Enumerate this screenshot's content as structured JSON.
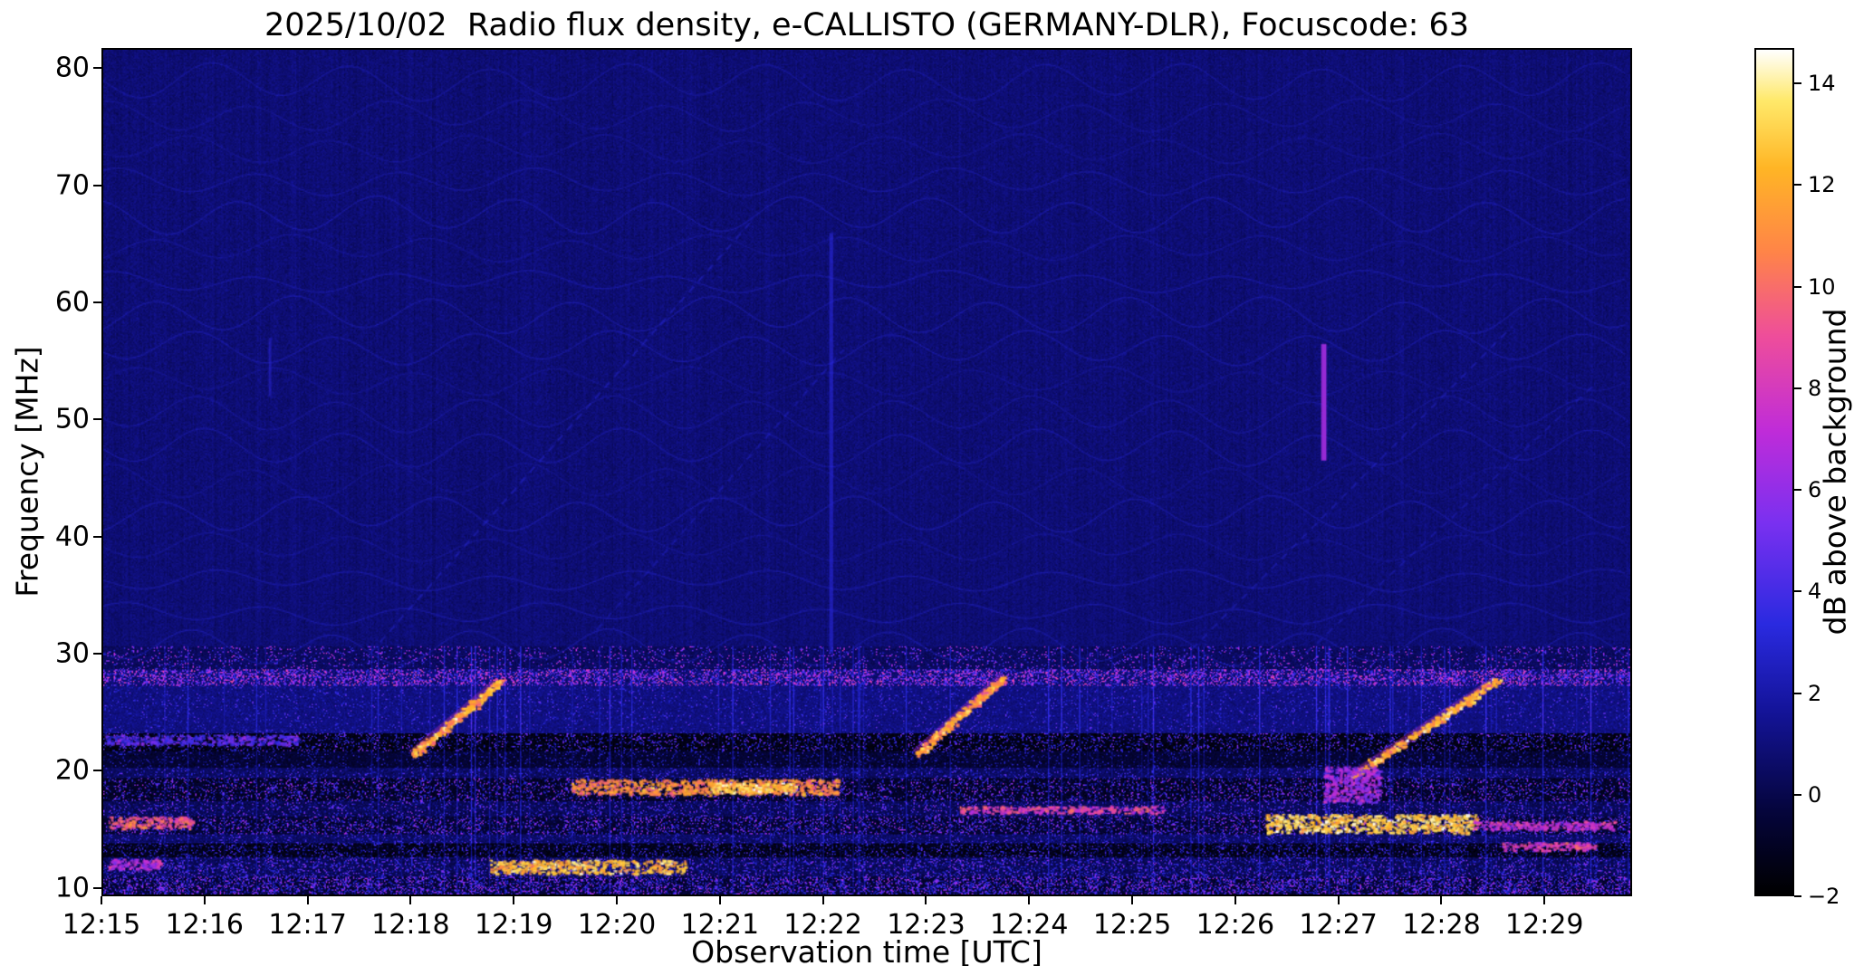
{
  "chart_data": {
    "type": "heatmap",
    "title": "2025/10/02  Radio flux density, e-CALLISTO (GERMANY-DLR), Focuscode: 63",
    "xlabel": "Observation time [UTC]",
    "ylabel": "Frequency [MHz]",
    "x_ticks": [
      "12:15",
      "12:16",
      "12:17",
      "12:18",
      "12:19",
      "12:20",
      "12:21",
      "12:22",
      "12:23",
      "12:24",
      "12:25",
      "12:26",
      "12:27",
      "12:28",
      "12:29"
    ],
    "x_range_minutes": [
      0,
      14.85
    ],
    "y_ticks": [
      10,
      20,
      30,
      40,
      50,
      60,
      70,
      80
    ],
    "y_range_mhz": [
      9.27,
      81.73
    ],
    "background_db": 0.85,
    "colorbar": {
      "label": "dB above background",
      "range": [
        -2,
        14.7
      ],
      "ticks": [
        {
          "v": -2,
          "label": "−2"
        },
        {
          "v": 0,
          "label": "0"
        },
        {
          "v": 2,
          "label": "2"
        },
        {
          "v": 4,
          "label": "4"
        },
        {
          "v": 6,
          "label": "6"
        },
        {
          "v": 8,
          "label": "8"
        },
        {
          "v": 10,
          "label": "10"
        },
        {
          "v": 12,
          "label": "12"
        },
        {
          "v": 14,
          "label": "14"
        }
      ],
      "stops": [
        {
          "t": 0.0,
          "c": "#000000"
        },
        {
          "t": 0.1,
          "c": "#05053d"
        },
        {
          "t": 0.22,
          "c": "#14149b"
        },
        {
          "t": 0.32,
          "c": "#2a2ae0"
        },
        {
          "t": 0.44,
          "c": "#7a30f0"
        },
        {
          "t": 0.55,
          "c": "#c02cd8"
        },
        {
          "t": 0.66,
          "c": "#ee4d9b"
        },
        {
          "t": 0.76,
          "c": "#ff8448"
        },
        {
          "t": 0.86,
          "c": "#ffb525"
        },
        {
          "t": 0.94,
          "c": "#ffe96a"
        },
        {
          "t": 1.0,
          "c": "#ffffff"
        }
      ]
    },
    "features": {
      "wavy_bands": {
        "f_start": 30.5,
        "f_end": 79.5,
        "spacing": 2.85,
        "amplitude": 1.0,
        "period_min": 1.35,
        "value": 3.0
      },
      "drift_lines": [
        {
          "t0": 2.6,
          "f0": 30,
          "t1": 6.3,
          "f1": 67,
          "value": 3.2
        },
        {
          "t0": 4.8,
          "f0": 32,
          "t1": 7.2,
          "f1": 56,
          "value": 2.8
        },
        {
          "t0": 10.1,
          "f0": 26,
          "t1": 13.7,
          "f1": 58,
          "value": 3.0
        },
        {
          "t0": 11.7,
          "f0": 30,
          "t1": 14.5,
          "f1": 53,
          "value": 2.7
        }
      ],
      "vertical_streaks": [
        {
          "t": 7.08,
          "f0": 30.0,
          "f1": 66.0,
          "value": 3.4,
          "width": 3,
          "alpha": 0.55
        },
        {
          "t": 11.87,
          "f0": 46.5,
          "f1": 56.5,
          "value": 6.5,
          "width": 4,
          "alpha": 0.9
        },
        {
          "t": 1.62,
          "f0": 52.0,
          "f1": 57.0,
          "value": 3.5,
          "width": 2,
          "alpha": 0.5
        }
      ],
      "bursts": [
        {
          "t0": 3.0,
          "f0": 21.3,
          "t1": 3.85,
          "f1": 27.6,
          "value": 12
        },
        {
          "t0": 7.9,
          "f0": 21.4,
          "t1": 8.75,
          "f1": 28.0,
          "value": 11.5
        },
        {
          "t0": 12.15,
          "f0": 19.5,
          "t1": 13.55,
          "f1": 27.7,
          "value": 12
        }
      ],
      "rfi_bands": [
        {
          "f0": 28.6,
          "f1": 30.6,
          "base": 0.4,
          "p": 0.1,
          "smin": 3,
          "smax": 8
        },
        {
          "f0": 27.2,
          "f1": 28.6,
          "base": 0.8,
          "p": 0.38,
          "smin": 3,
          "smax": 9
        },
        {
          "f0": 23.2,
          "f1": 27.2,
          "base": 1.1,
          "p": 0.07,
          "smin": 2,
          "smax": 5
        },
        {
          "f0": 21.6,
          "f1": 23.2,
          "base": -1.4,
          "p": 0.2,
          "smin": 1,
          "smax": 6
        },
        {
          "f0": 20.2,
          "f1": 21.6,
          "base": -0.6,
          "p": 0.13,
          "smin": 0,
          "smax": 4
        },
        {
          "f0": 19.3,
          "f1": 20.2,
          "base": 0.4,
          "p": 0.16,
          "smin": 1,
          "smax": 5
        },
        {
          "f0": 17.3,
          "f1": 19.3,
          "base": -0.9,
          "p": 0.22,
          "smin": 1,
          "smax": 7
        },
        {
          "f0": 16.0,
          "f1": 17.3,
          "base": 0.2,
          "p": 0.17,
          "smin": 1,
          "smax": 6
        },
        {
          "f0": 14.5,
          "f1": 16.0,
          "base": -0.6,
          "p": 0.26,
          "smin": 1,
          "smax": 7
        },
        {
          "f0": 13.7,
          "f1": 14.5,
          "base": 0.5,
          "p": 0.16,
          "smin": 1,
          "smax": 5
        },
        {
          "f0": 12.5,
          "f1": 13.7,
          "base": -1.3,
          "p": 0.22,
          "smin": 0,
          "smax": 5
        },
        {
          "f0": 10.9,
          "f1": 12.5,
          "base": 0.2,
          "p": 0.26,
          "smin": 1,
          "smax": 6
        },
        {
          "f0": 9.27,
          "f1": 10.9,
          "base": -0.6,
          "p": 0.4,
          "smin": 1,
          "smax": 7
        }
      ],
      "bright_patches": [
        {
          "t0": 0.05,
          "t1": 0.85,
          "f0": 15.0,
          "f1": 16.0,
          "value": 9.5
        },
        {
          "t0": 0.05,
          "t1": 0.55,
          "f0": 11.5,
          "f1": 12.4,
          "value": 7
        },
        {
          "t0": 0.0,
          "t1": 1.9,
          "f0": 22.2,
          "f1": 23.0,
          "value": 4.5
        },
        {
          "t0": 3.75,
          "t1": 5.65,
          "f0": 11.1,
          "f1": 12.3,
          "value": 12.5
        },
        {
          "t0": 4.55,
          "t1": 7.15,
          "f0": 17.9,
          "f1": 19.2,
          "value": 11
        },
        {
          "t0": 5.9,
          "t1": 6.75,
          "f0": 18.0,
          "f1": 18.9,
          "value": 13
        },
        {
          "t0": 8.3,
          "t1": 10.3,
          "f0": 16.3,
          "f1": 16.9,
          "value": 8.5
        },
        {
          "t0": 11.3,
          "t1": 13.35,
          "f0": 14.6,
          "f1": 16.2,
          "value": 13
        },
        {
          "t0": 13.3,
          "t1": 14.7,
          "f0": 14.9,
          "f1": 15.6,
          "value": 7.5
        },
        {
          "t0": 11.85,
          "t1": 12.4,
          "f0": 17.2,
          "f1": 20.3,
          "value": 6.5
        },
        {
          "t0": 13.6,
          "t1": 14.5,
          "f0": 13.1,
          "f1": 13.8,
          "value": 8
        }
      ]
    }
  }
}
